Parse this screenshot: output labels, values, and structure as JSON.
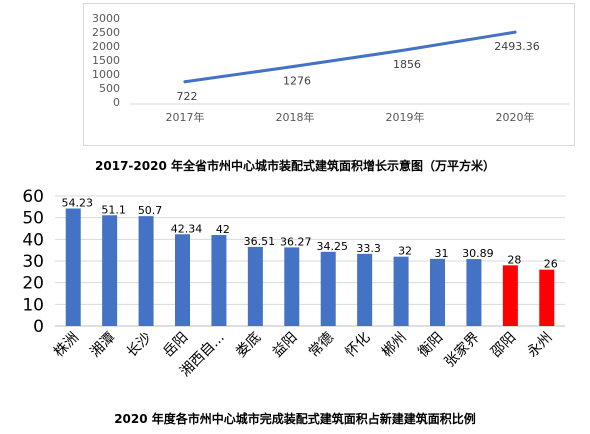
{
  "chart_data": [
    {
      "type": "line",
      "title": "2017-2020 年全省市州中心城市装配式建筑面积增长示意图（万平方米）",
      "categories": [
        "2017年",
        "2018年",
        "2019年",
        "2020年"
      ],
      "values": [
        722,
        1276,
        1856,
        2493.36
      ],
      "data_labels": [
        "722",
        "1276",
        "1856",
        "2493.36"
      ],
      "yticks": [
        "0",
        "500",
        "1000",
        "1500",
        "2000",
        "2500",
        "3000"
      ],
      "ylim": [
        0,
        3000
      ],
      "grid": false,
      "line_color": "#4472c4"
    },
    {
      "type": "bar",
      "title": "2020 年度各市州中心城市完成装配式建筑面积占新建建筑面积比例",
      "categories": [
        "株洲",
        "湘潭",
        "长沙",
        "岳阳",
        "湘西自...",
        "娄底",
        "益阳",
        "常德",
        "怀化",
        "郴州",
        "衡阳",
        "张家界",
        "邵阳",
        "永州"
      ],
      "values": [
        54.23,
        51.1,
        50.7,
        42.34,
        42,
        36.51,
        36.27,
        34.25,
        33.3,
        32,
        31,
        30.89,
        28,
        26
      ],
      "data_labels": [
        "54.23",
        "51.1",
        "50.7",
        "42.34",
        "42",
        "36.51",
        "36.27",
        "34.25",
        "33.3",
        "32",
        "31",
        "30.89",
        "28",
        "26"
      ],
      "yticks": [
        "0",
        "10",
        "20",
        "30",
        "40",
        "50",
        "60"
      ],
      "ylim": [
        0,
        60
      ],
      "grid": true,
      "bar_colors": [
        "#4472c4",
        "#4472c4",
        "#4472c4",
        "#4472c4",
        "#4472c4",
        "#4472c4",
        "#4472c4",
        "#4472c4",
        "#4472c4",
        "#4472c4",
        "#4472c4",
        "#4472c4",
        "#ff0000",
        "#ff0000"
      ]
    }
  ]
}
